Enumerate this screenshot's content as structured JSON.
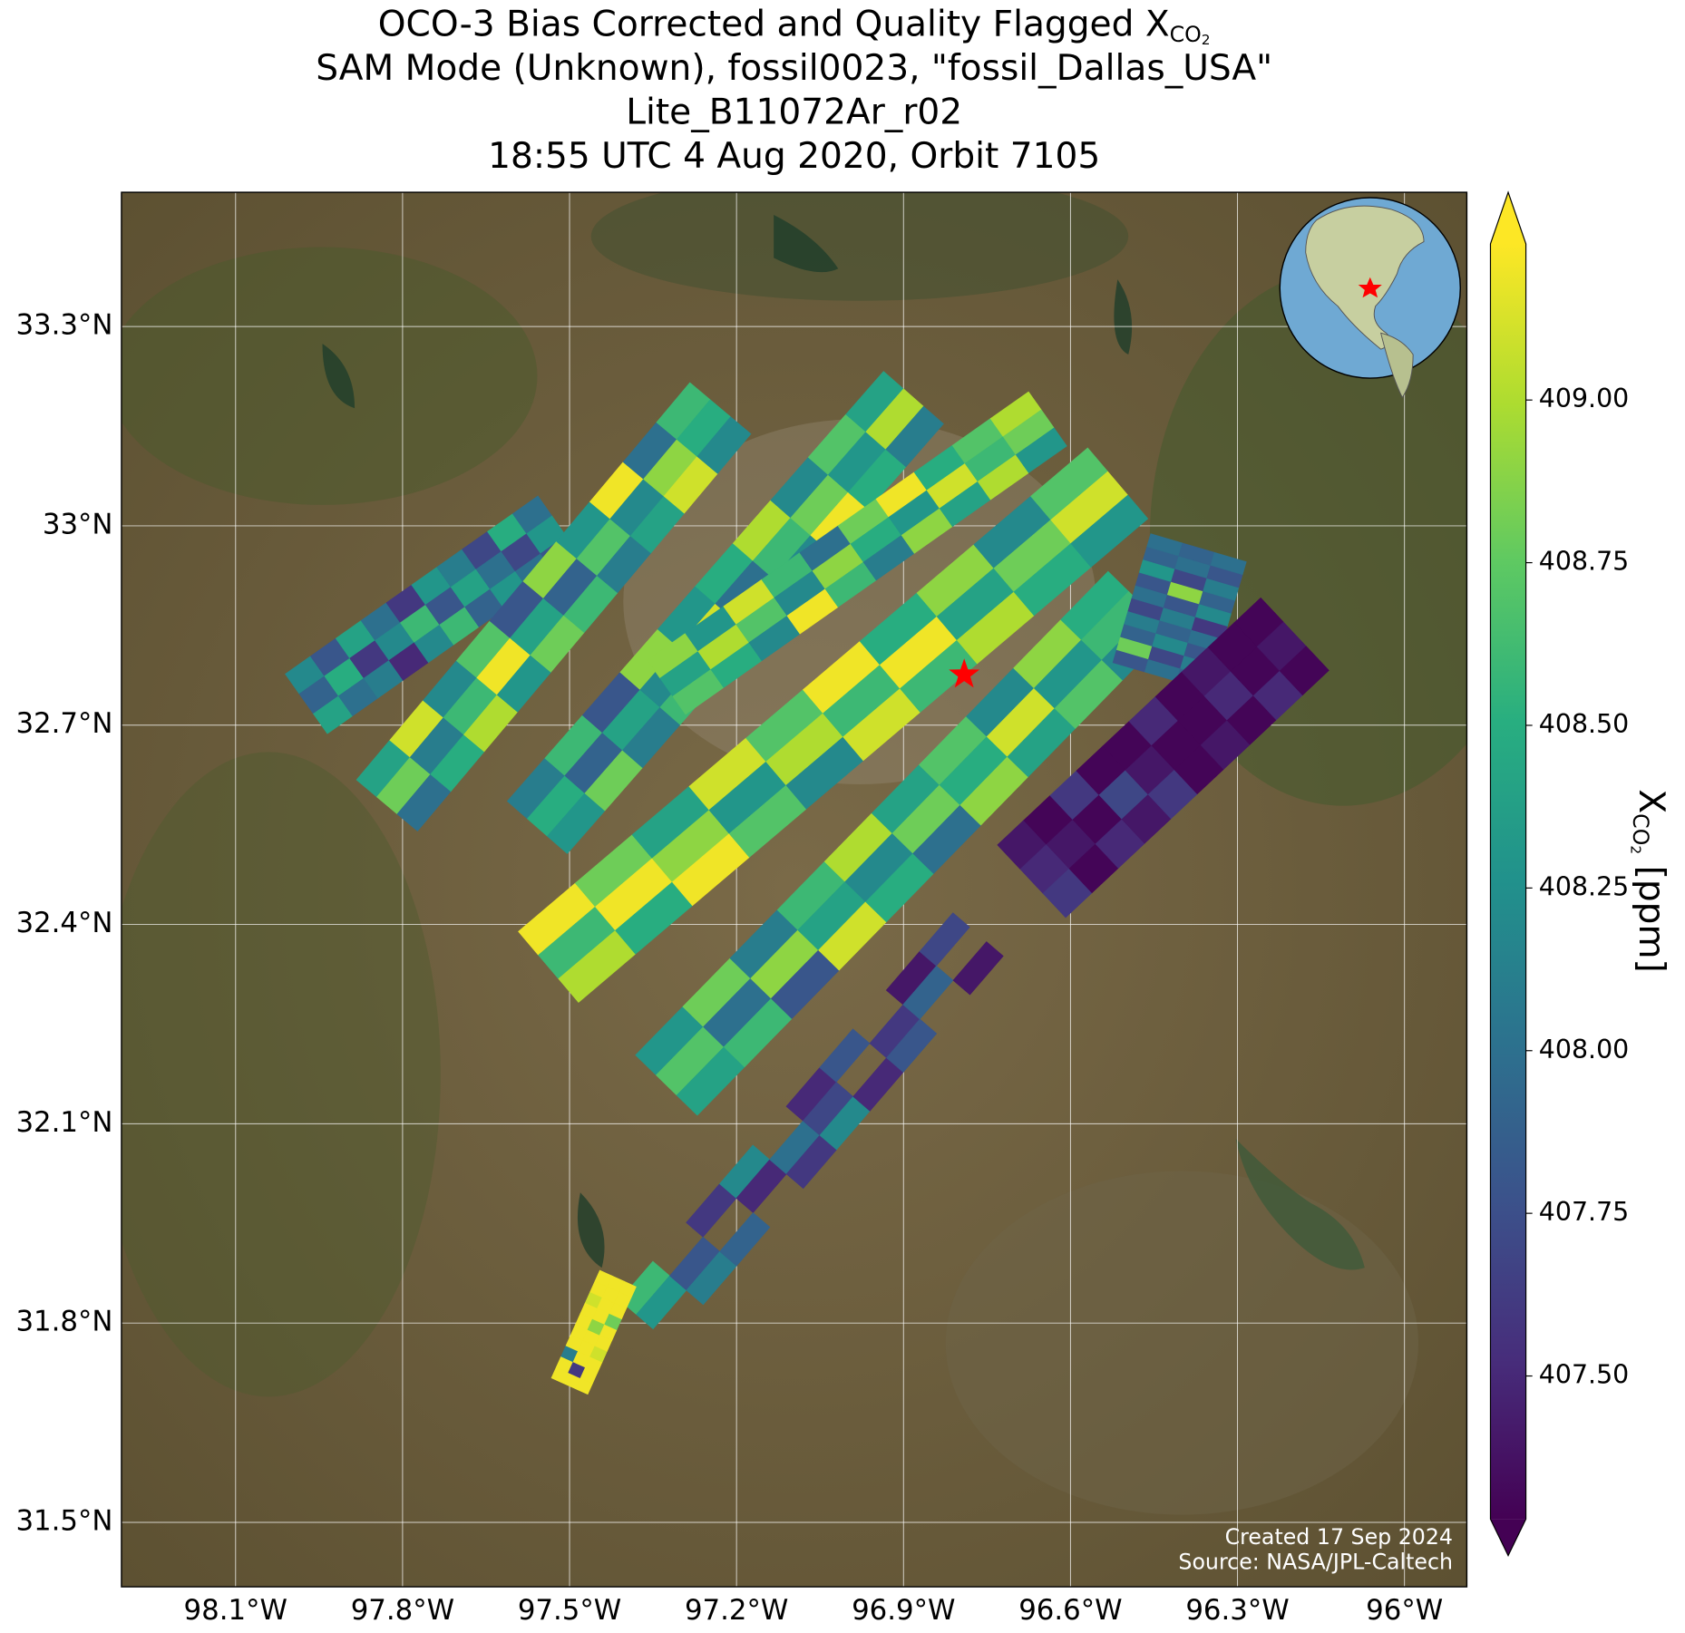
{
  "chart_data": {
    "type": "swath-map",
    "title": [
      "OCO-3 Bias Corrected and Quality Flagged X",
      "SAM Mode (Unknown), fossil0023, \"fossil_Dallas_USA\"",
      "Lite_B11072Ar_r02",
      "18:55 UTC 4 Aug 2020, Orbit 7105"
    ],
    "title_subscript": [
      "CO",
      "2"
    ],
    "xlim": [
      -98.305,
      -95.888
    ],
    "ylim": [
      31.403,
      33.502
    ],
    "xticks": [
      {
        "value": -98.1,
        "label": "98.1°W"
      },
      {
        "value": -97.8,
        "label": "97.8°W"
      },
      {
        "value": -97.5,
        "label": "97.5°W"
      },
      {
        "value": -97.2,
        "label": "97.2°W"
      },
      {
        "value": -96.9,
        "label": "96.9°W"
      },
      {
        "value": -96.6,
        "label": "96.6°W"
      },
      {
        "value": -96.3,
        "label": "96.3°W"
      },
      {
        "value": -96,
        "label": "96°W"
      }
    ],
    "yticks": [
      {
        "value": 31.5,
        "label": "31.5°N"
      },
      {
        "value": 31.8,
        "label": "31.8°N"
      },
      {
        "value": 32.1,
        "label": "32.1°N"
      },
      {
        "value": 32.4,
        "label": "32.4°N"
      },
      {
        "value": 32.7,
        "label": "32.7°N"
      },
      {
        "value": 33,
        "label": "33°N"
      },
      {
        "value": 33.3,
        "label": "33.3°N"
      }
    ],
    "grid": true,
    "colormap": "viridis",
    "clim": [
      407.28,
      409.24
    ],
    "colorbar_ticks": [
      {
        "value": 407.5,
        "label": "407.50"
      },
      {
        "value": 407.75,
        "label": "407.75"
      },
      {
        "value": 408,
        "label": "408.00"
      },
      {
        "value": 408.25,
        "label": "408.25"
      },
      {
        "value": 408.5,
        "label": "408.50"
      },
      {
        "value": 408.75,
        "label": "408.75"
      },
      {
        "value": 409,
        "label": "409.00"
      }
    ],
    "colorbar_label": [
      "X",
      "CO",
      "2",
      " [ppm]"
    ],
    "target": {
      "lon": -96.791,
      "lat": 32.776,
      "color": "#ff0000"
    },
    "credits": [
      "Created 17 Sep 2024",
      "Source: NASA/JPL-Caltech"
    ],
    "swaths": [
      {
        "lon": [
          -97.973,
          -97.519
        ],
        "lat": [
          32.732,
          33.0
        ],
        "width": 0.11,
        "values": [
          [
            408.2,
            407.8,
            408.4,
            408.0,
            407.6,
            408.3,
            408.1,
            407.7,
            408.5,
            408.0
          ],
          [
            407.9,
            408.5,
            407.6,
            408.2,
            408.6,
            407.8,
            408.4,
            408.0,
            407.7,
            408.3
          ],
          [
            408.4,
            408.0,
            408.1,
            407.5,
            408.2,
            408.6,
            407.9,
            408.3,
            408.0,
            407.8
          ]
        ]
      },
      {
        "lon": [
          -97.828,
          -97.229
        ],
        "lat": [
          32.579,
          33.177
        ],
        "width": 0.12,
        "values": [
          [
            408.4,
            409.1,
            408.2,
            408.7,
            407.8,
            408.9,
            408.3,
            409.2,
            408.0,
            408.6
          ],
          [
            408.8,
            408.1,
            408.6,
            409.2,
            408.4,
            407.9,
            408.7,
            408.2,
            408.9,
            408.5
          ],
          [
            408.0,
            408.5,
            409.0,
            408.3,
            408.8,
            408.6,
            408.1,
            408.4,
            409.1,
            408.2
          ]
        ]
      },
      {
        "lon": [
          -97.558,
          -96.882
        ],
        "lat": [
          32.546,
          33.193
        ],
        "width": 0.12,
        "values": [
          [
            408.1,
            408.6,
            407.8,
            408.9,
            408.3,
            408.5,
            409.0,
            408.2,
            408.7,
            408.4
          ],
          [
            408.5,
            407.9,
            408.4,
            408.2,
            409.1,
            408.0,
            408.6,
            408.8,
            408.3,
            409.0
          ],
          [
            408.3,
            408.8,
            408.1,
            408.6,
            407.9,
            408.7,
            408.2,
            409.2,
            408.5,
            408.1
          ]
        ]
      },
      {
        "lon": [
          -97.326,
          -96.641
        ],
        "lat": [
          32.757,
          33.161
        ],
        "width": 0.1,
        "values": [
          [
            408.9,
            408.3,
            409.1,
            408.6,
            408.0,
            408.8,
            409.2,
            408.5,
            408.7,
            409.0
          ],
          [
            408.4,
            409.0,
            408.7,
            408.2,
            408.9,
            408.5,
            408.3,
            409.1,
            408.6,
            408.8
          ],
          [
            408.7,
            408.5,
            408.2,
            409.2,
            408.6,
            408.1,
            408.9,
            408.4,
            409.0,
            408.3
          ]
        ]
      },
      {
        "lon": [
          -97.538,
          -96.515
        ],
        "lat": [
          32.336,
          33.064
        ],
        "width": 0.14,
        "values": [
          [
            409.2,
            408.8,
            408.4,
            409.1,
            408.7,
            409.2,
            408.5,
            408.9,
            408.2,
            408.7
          ],
          [
            408.6,
            409.2,
            408.9,
            408.3,
            409.0,
            408.6,
            409.2,
            408.4,
            408.8,
            409.1
          ],
          [
            409.0,
            408.5,
            409.2,
            408.7,
            408.2,
            409.1,
            408.6,
            409.0,
            408.5,
            408.3
          ]
        ]
      },
      {
        "lon": [
          -97.326,
          -96.477
        ],
        "lat": [
          32.158,
          32.886
        ],
        "width": 0.13,
        "values": [
          [
            408.3,
            408.8,
            408.1,
            408.6,
            409.0,
            408.4,
            408.7,
            408.2,
            408.9,
            408.5
          ],
          [
            408.7,
            408.0,
            408.9,
            408.4,
            408.2,
            408.8,
            408.5,
            409.1,
            408.3,
            408.6
          ],
          [
            408.4,
            408.6,
            407.8,
            409.1,
            408.5,
            408.0,
            408.9,
            408.4,
            408.7,
            408.2
          ]
        ]
      },
      {
        "lon": [
          -97.365,
          -96.766
        ],
        "lat": [
          31.802,
          32.385
        ],
        "width": 0.1,
        "values": [
          [
            408.6,
            null,
            407.6,
            408.2,
            null,
            407.5,
            407.8,
            null,
            407.4,
            407.7
          ],
          [
            408.3,
            407.8,
            null,
            407.5,
            408.0,
            407.7,
            null,
            407.6,
            407.9,
            null
          ],
          [
            null,
            408.1,
            407.9,
            null,
            407.6,
            408.2,
            407.5,
            407.8,
            null,
            407.4
          ]
        ]
      },
      {
        "lon": [
          -96.438,
          -96.37
        ],
        "lat": [
          32.773,
          32.967
        ],
        "width": 0.15,
        "values": [
          [
            407.8,
            408.8,
            407.9,
            408.1,
            407.7,
            408.0,
            407.8,
            408.3,
            407.9,
            408.0
          ],
          [
            408.0,
            407.7,
            408.2,
            407.9,
            408.1,
            407.8,
            408.9,
            407.7,
            408.0,
            407.9
          ],
          [
            407.9,
            408.1,
            407.8,
            408.0,
            407.6,
            408.2,
            407.9,
            408.1,
            407.8,
            408.0
          ]
        ]
      },
      {
        "lon": [
          -96.67,
          -96.197
        ],
        "lat": [
          32.465,
          32.837
        ],
        "width": 0.15,
        "values": [
          [
            407.4,
            407.3,
            407.6,
            407.3,
            407.3,
            407.5,
            407.3,
            407.4,
            407.3,
            407.3
          ],
          [
            407.5,
            407.4,
            407.3,
            407.7,
            407.4,
            407.3,
            407.3,
            407.5,
            407.3,
            407.4
          ],
          [
            407.6,
            407.3,
            407.5,
            407.4,
            407.6,
            407.3,
            407.4,
            407.3,
            407.5,
            407.3
          ]
        ]
      },
      {
        "lon": [
          -97.5,
          -97.413
        ],
        "lat": [
          31.705,
          31.867
        ],
        "width": 0.06,
        "values": [
          [
            409.2,
            409.2,
            408.1,
            409.2,
            409.2,
            409.2,
            409.2,
            409.1,
            409.2,
            409.2
          ],
          [
            409.2,
            407.6,
            409.2,
            409.2,
            409.2,
            408.9,
            409.2,
            409.2,
            409.2,
            409.2
          ],
          [
            409.2,
            409.2,
            409.2,
            409.1,
            409.2,
            409.2,
            408.8,
            409.2,
            409.2,
            409.2
          ]
        ]
      }
    ]
  }
}
